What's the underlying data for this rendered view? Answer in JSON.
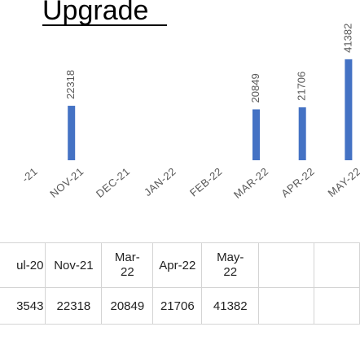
{
  "title": "Upgrade",
  "chart_data": {
    "type": "bar",
    "categories": [
      "-21",
      "NOV-21",
      "DEC-21",
      "JAN-22",
      "FEB-22",
      "MAR-22",
      "APR-22",
      "MAY-22"
    ],
    "values": [
      null,
      22318,
      null,
      null,
      null,
      20849,
      21706,
      41382
    ],
    "color": "#4472c4",
    "ylim": [
      0,
      50000
    ]
  },
  "table": {
    "rows": [
      [
        "ul-20",
        "Nov-21",
        "Mar-22",
        "Apr-22",
        "May-22"
      ],
      [
        "3543",
        "22318",
        "20849",
        "21706",
        "41382"
      ]
    ]
  }
}
